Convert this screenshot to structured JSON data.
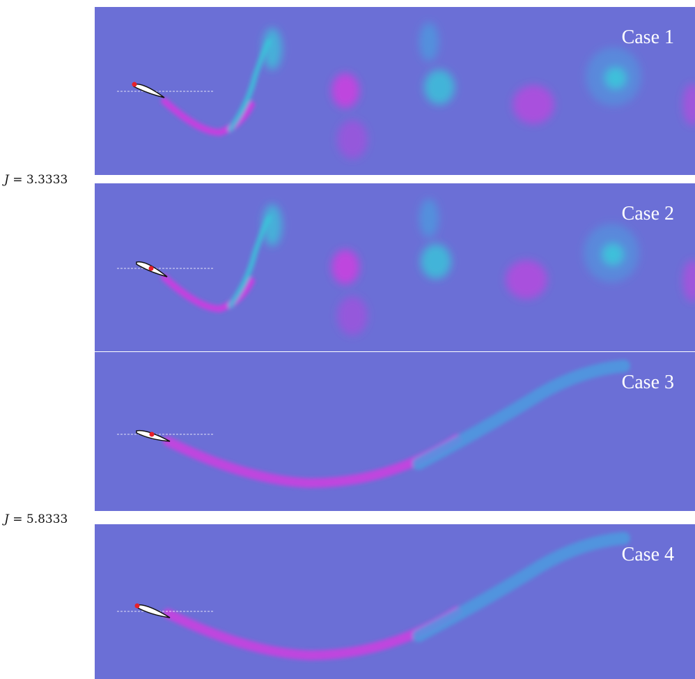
{
  "group_labels": [
    {
      "prefix": "J",
      "suffix": " = 3.3333"
    },
    {
      "prefix": "J",
      "suffix": " = 5.8333"
    }
  ],
  "panels": [
    {
      "title": "Case 1",
      "regime": "vortex-street",
      "pivot": "leading-edge"
    },
    {
      "title": "Case 2",
      "regime": "vortex-street",
      "pivot": "mid-chord"
    },
    {
      "title": "Case 3",
      "regime": "long-wake",
      "pivot": "mid-chord"
    },
    {
      "title": "Case 4",
      "regime": "long-wake",
      "pivot": "leading-edge"
    }
  ],
  "colors": {
    "background": "#6b6fd6",
    "negative_vorticity": "#d43be0",
    "positive_vorticity": "#3ac6da",
    "wake_blue": "#4a9ee0",
    "pivot_marker": "#e8202a",
    "foil": "#ffffff"
  }
}
